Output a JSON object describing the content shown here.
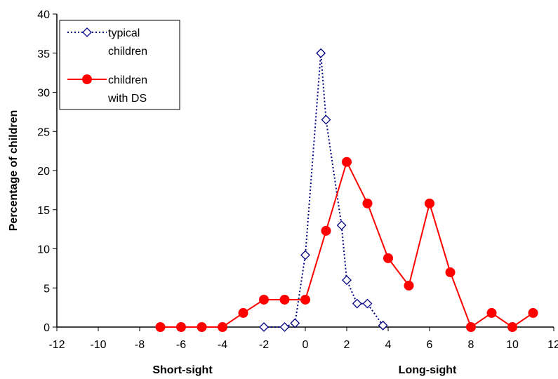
{
  "chart_data": {
    "type": "line",
    "title": "",
    "ylabel": "Percentage of children",
    "xlabel_left": "Short-sight",
    "xlabel_right": "Long-sight",
    "xlim": [
      -12,
      12
    ],
    "ylim": [
      0,
      40
    ],
    "x_ticks": [
      "-12",
      "-10",
      "-8",
      "-6",
      "-4",
      "-2",
      "0",
      "2",
      "4",
      "6",
      "8",
      "10",
      "12"
    ],
    "y_ticks": [
      "0",
      "5",
      "10",
      "15",
      "20",
      "25",
      "30",
      "35",
      "40"
    ],
    "grid": false,
    "legend_position": "top-left",
    "series": [
      {
        "name": "typical children",
        "legend_lines": [
          "typical",
          "children"
        ],
        "color": "#000080",
        "marker": "diamond",
        "line_style": "dotted",
        "points": [
          {
            "x": -2,
            "y": 0
          },
          {
            "x": -1,
            "y": 0
          },
          {
            "x": -0.5,
            "y": 0.5
          },
          {
            "x": 0,
            "y": 9.2
          },
          {
            "x": 0.75,
            "y": 35
          },
          {
            "x": 1,
            "y": 26.5
          },
          {
            "x": 1.75,
            "y": 13
          },
          {
            "x": 2,
            "y": 6
          },
          {
            "x": 2.5,
            "y": 3
          },
          {
            "x": 3,
            "y": 3
          },
          {
            "x": 3.75,
            "y": 0.2
          }
        ]
      },
      {
        "name": "children with DS",
        "legend_lines": [
          "children",
          "with DS"
        ],
        "color": "#ff0000",
        "marker": "circle",
        "line_style": "solid",
        "points": [
          {
            "x": -7,
            "y": 0
          },
          {
            "x": -6,
            "y": 0
          },
          {
            "x": -5,
            "y": 0
          },
          {
            "x": -4,
            "y": 0
          },
          {
            "x": -3,
            "y": 1.8
          },
          {
            "x": -2,
            "y": 3.5
          },
          {
            "x": -1,
            "y": 3.5
          },
          {
            "x": 0,
            "y": 3.5
          },
          {
            "x": 1,
            "y": 12.3
          },
          {
            "x": 2,
            "y": 21.1
          },
          {
            "x": 3,
            "y": 15.8
          },
          {
            "x": 4,
            "y": 8.8
          },
          {
            "x": 5,
            "y": 5.3
          },
          {
            "x": 6,
            "y": 15.8
          },
          {
            "x": 7,
            "y": 7
          },
          {
            "x": 8,
            "y": 0
          },
          {
            "x": 9,
            "y": 1.8
          },
          {
            "x": 10,
            "y": 0
          },
          {
            "x": 11,
            "y": 1.8
          }
        ]
      }
    ]
  }
}
